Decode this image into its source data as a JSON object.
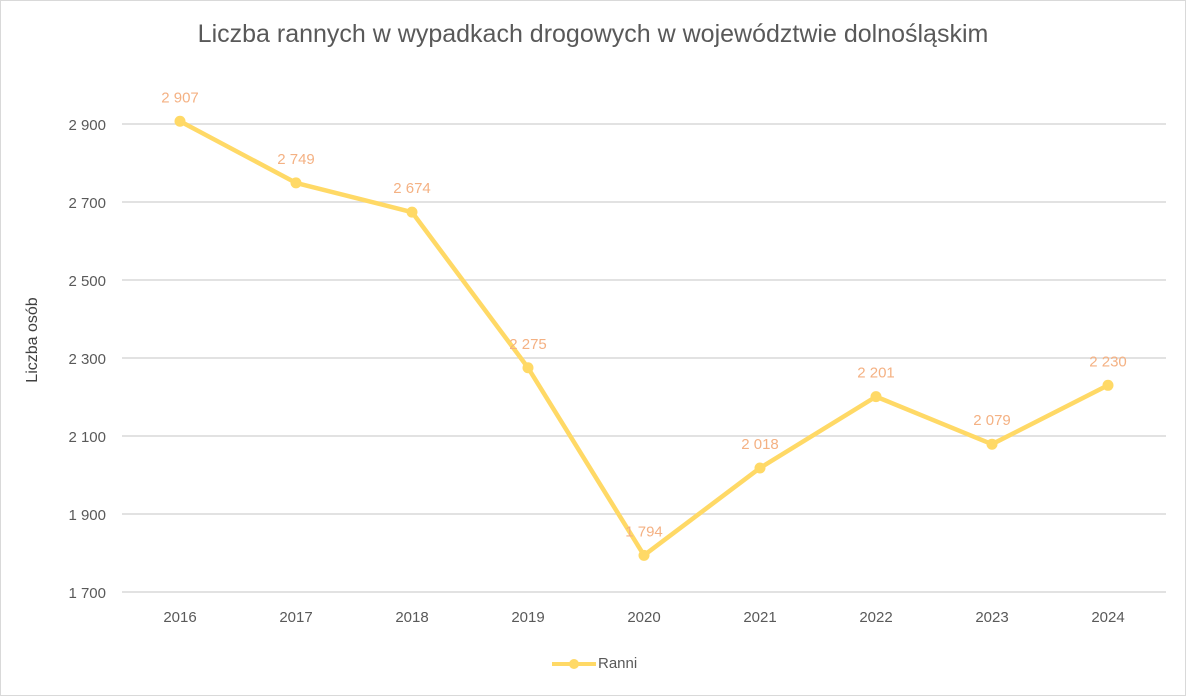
{
  "chart_data": {
    "type": "line",
    "title": "Liczba rannych w wypadkach drogowych w województwie dolnośląskim",
    "xlabel": "",
    "ylabel": "Liczba osób",
    "categories": [
      "2016",
      "2017",
      "2018",
      "2019",
      "2020",
      "2021",
      "2022",
      "2023",
      "2024"
    ],
    "series": [
      {
        "name": "Ranni",
        "values": [
          2907,
          2749,
          2674,
          2275,
          1794,
          2018,
          2201,
          2079,
          2230
        ],
        "color": "#FFD966"
      }
    ],
    "data_labels": [
      "2 907",
      "2 749",
      "2 674",
      "2 275",
      "1 794",
      "2 018",
      "2 201",
      "2 079",
      "2 230"
    ],
    "data_label_color": "#F4B183",
    "ylim": [
      1700,
      2900
    ],
    "yticks": [
      1700,
      1900,
      2100,
      2300,
      2500,
      2700,
      2900
    ],
    "ytick_labels": [
      "1 700",
      "1 900",
      "2 100",
      "2 300",
      "2 500",
      "2 700",
      "2 900"
    ],
    "grid": true,
    "legend_position": "bottom"
  }
}
